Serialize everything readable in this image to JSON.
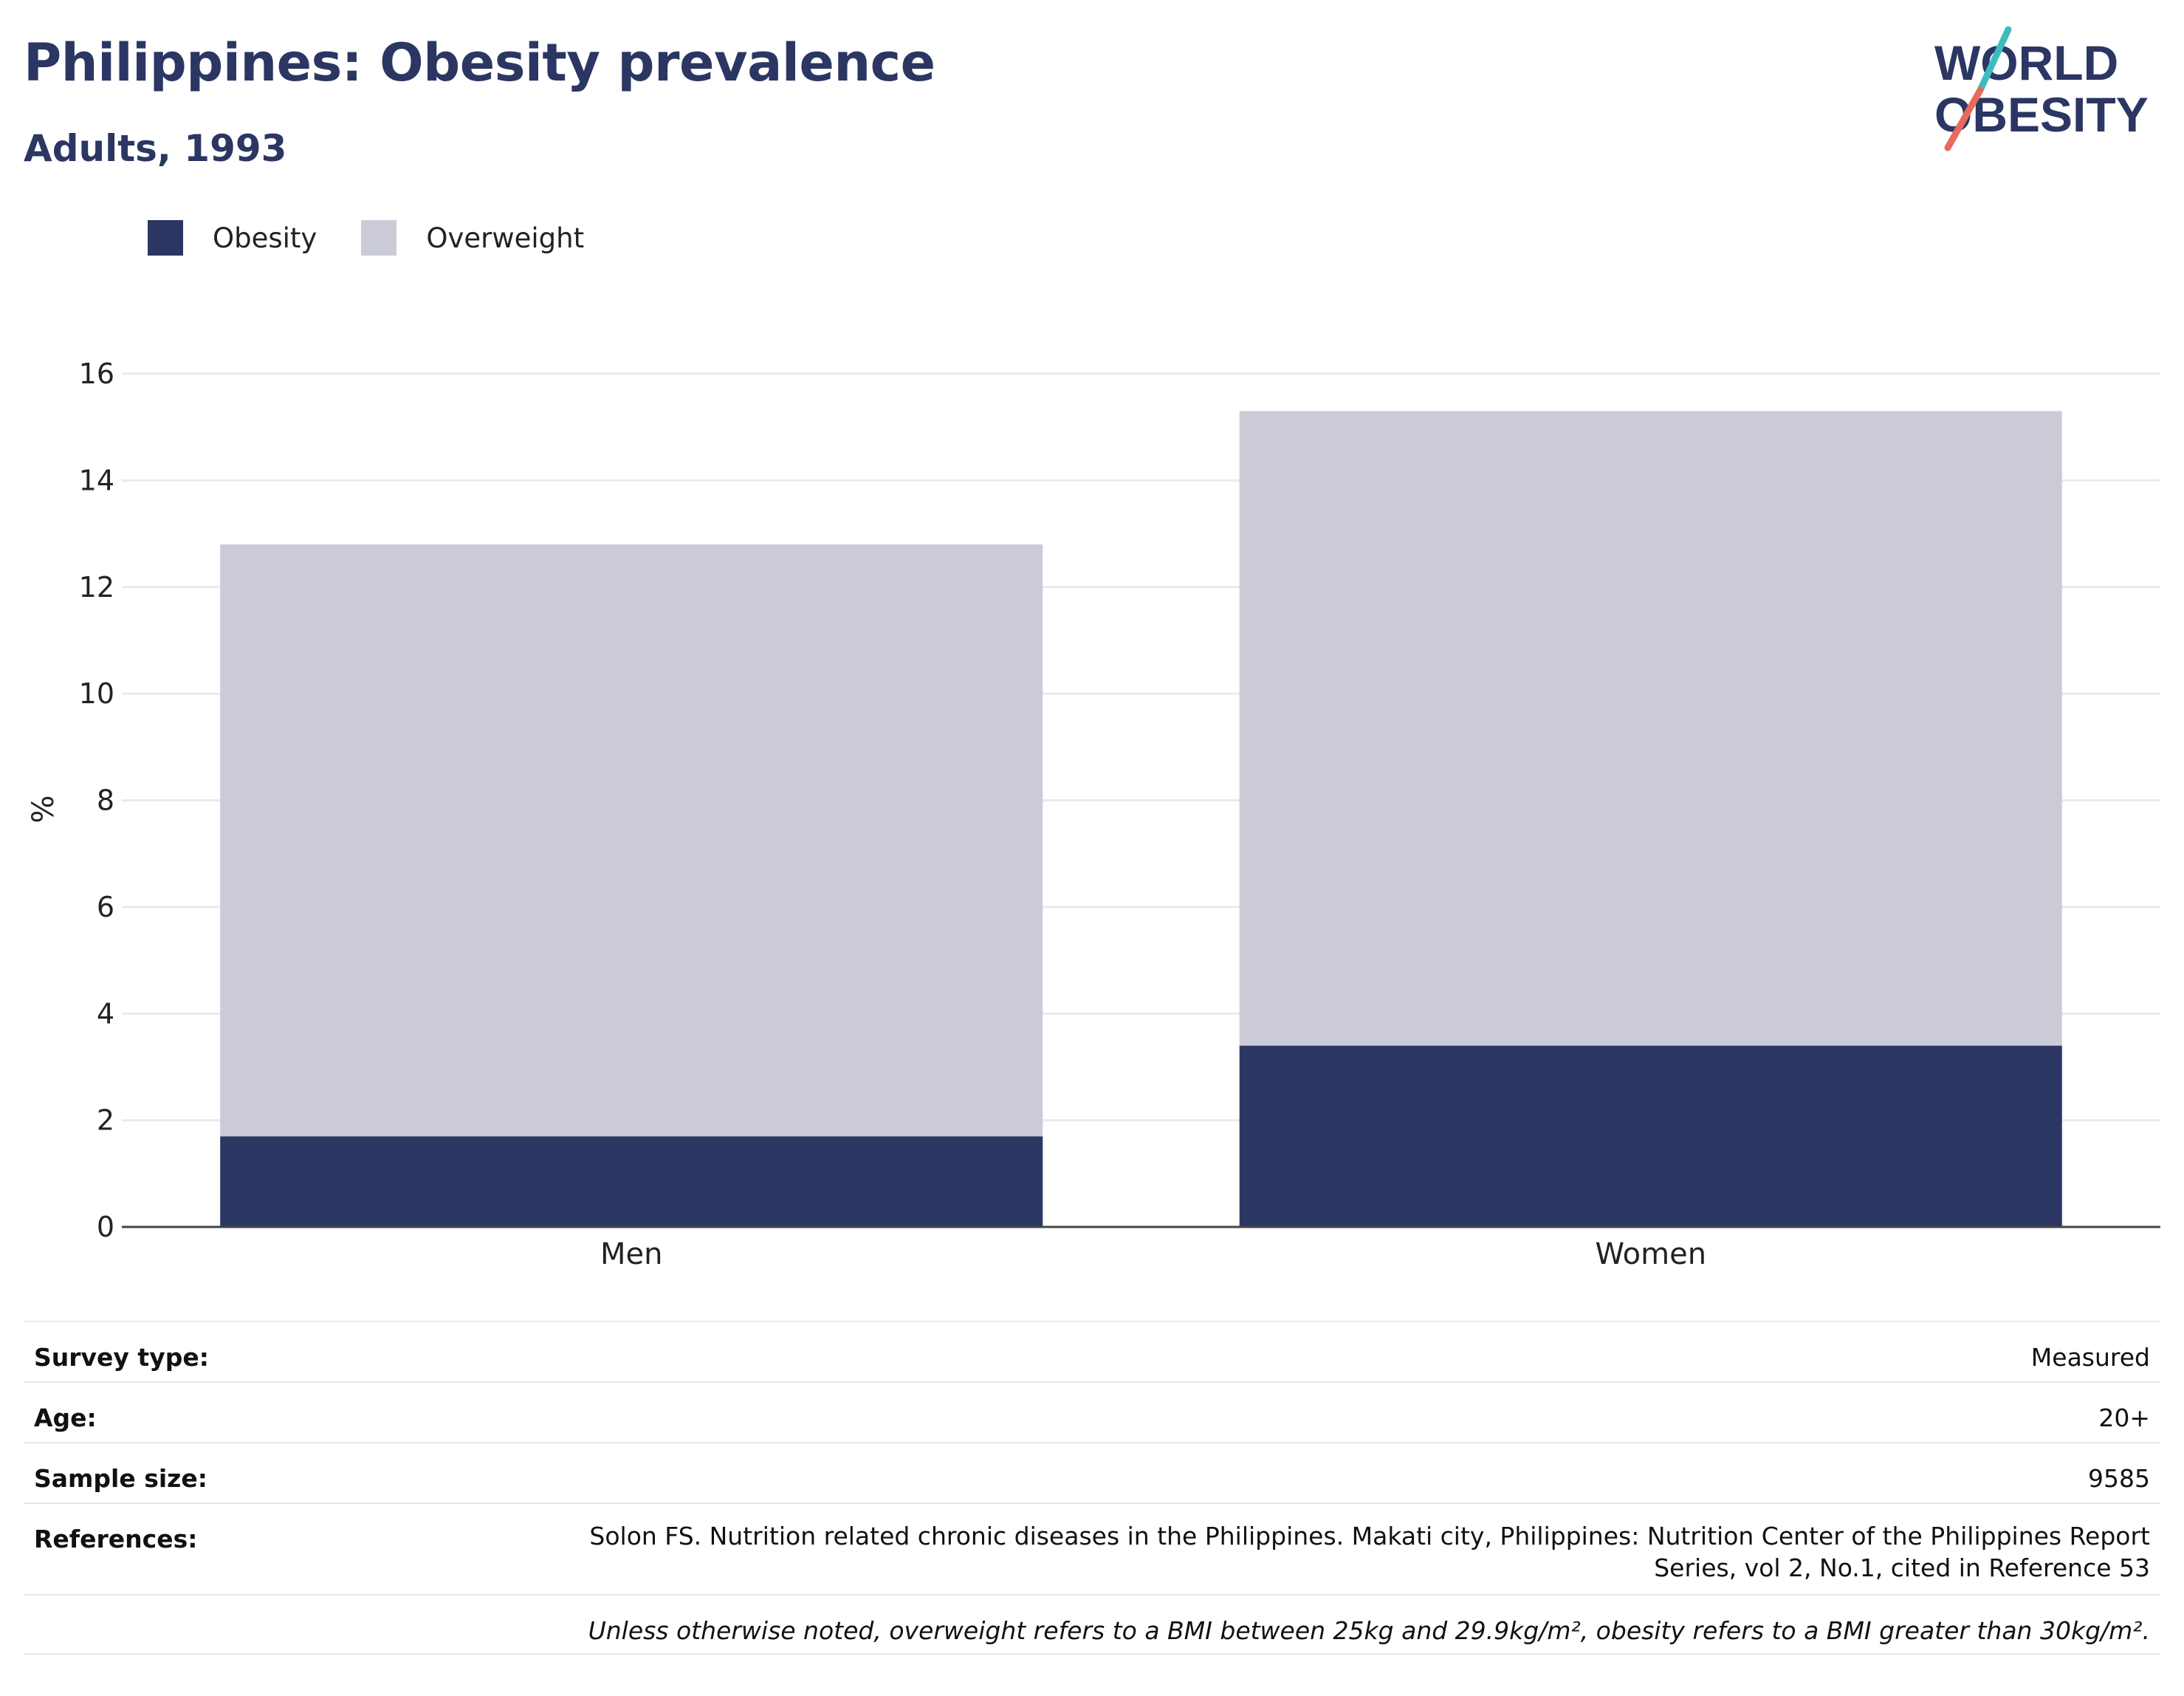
{
  "header": {
    "title": "Philippines: Obesity prevalence",
    "subtitle": "Adults, 1993",
    "logo_line1": "WORLD",
    "logo_line2": "OBESITY"
  },
  "legend": {
    "items": [
      {
        "label": "Obesity",
        "color": "#2b3663"
      },
      {
        "label": "Overweight",
        "color": "#cacbd7"
      }
    ]
  },
  "chart_data": {
    "type": "bar",
    "stacked": true,
    "categories": [
      "Men",
      "Women"
    ],
    "series": [
      {
        "name": "Obesity",
        "values": [
          1.7,
          3.4
        ],
        "color": "#2b3663"
      },
      {
        "name": "Overweight",
        "values": [
          11.1,
          11.9
        ],
        "color": "#cacbd7"
      }
    ],
    "ylabel": "%",
    "ylim": [
      0,
      16
    ],
    "yticks": [
      0,
      2,
      4,
      6,
      8,
      10,
      12,
      14,
      16
    ],
    "grid": true
  },
  "info": {
    "survey_type_label": "Survey type:",
    "survey_type_value": "Measured",
    "age_label": "Age:",
    "age_value": "20+",
    "sample_size_label": "Sample size:",
    "sample_size_value": "9585",
    "references_label": "References:",
    "references_value": "Solon FS. Nutrition related chronic diseases in the Philippines. Makati city, Philippines: Nutrition Center of the Philippines Report Series, vol 2, No.1, cited in Reference 53",
    "note": "Unless otherwise noted, overweight refers to a BMI between 25kg and 29.9kg/m², obesity refers to a BMI greater than 30kg/m²."
  }
}
